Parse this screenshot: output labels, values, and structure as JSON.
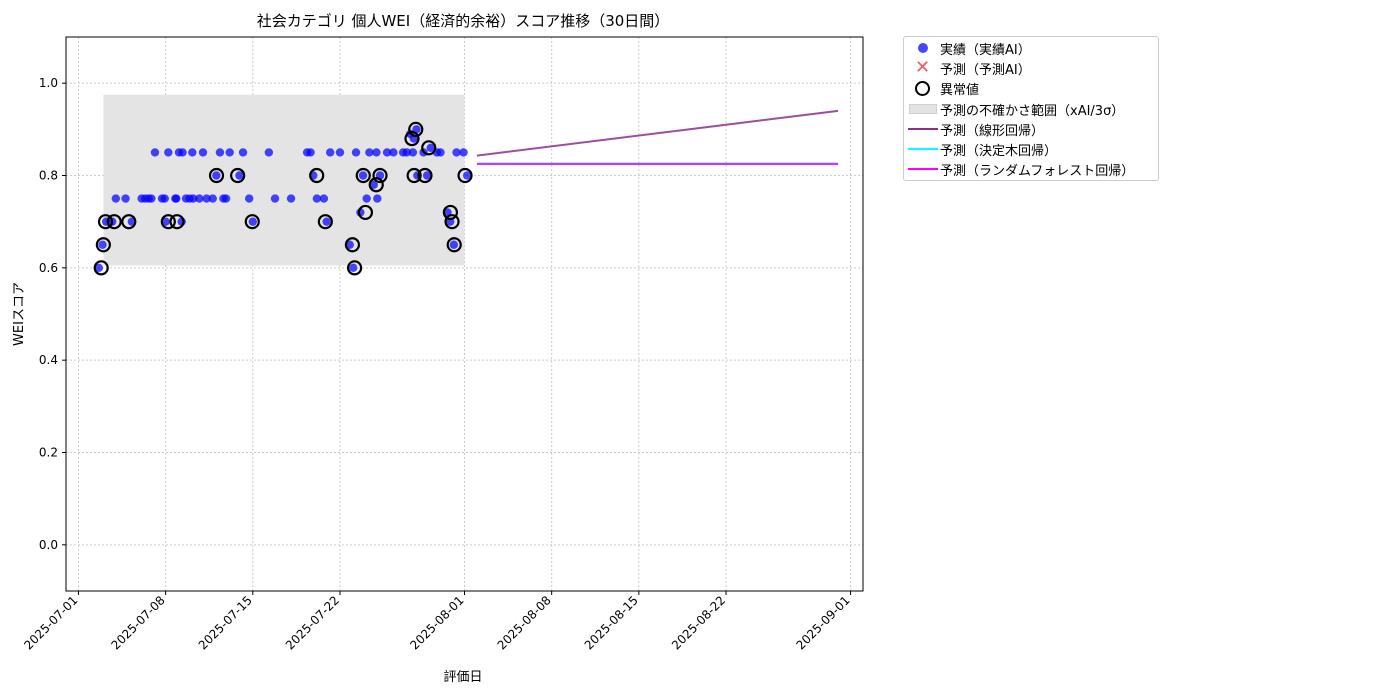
{
  "chart_data": {
    "type": "scatter",
    "title": "社会カテゴリ 個人WEI（経済的余裕）スコア推移（30日間）",
    "xlabel": "評価日",
    "ylabel": "WEIスコア",
    "xlim": [
      "2025-06-30",
      "2025-09-02"
    ],
    "ylim": [
      -0.1,
      1.1
    ],
    "x_ticks": [
      "2025-07-01",
      "2025-07-08",
      "2025-07-15",
      "2025-07-22",
      "2025-08-01",
      "2025-08-08",
      "2025-08-15",
      "2025-08-22",
      "2025-09-01"
    ],
    "y_ticks": [
      0.0,
      0.2,
      0.4,
      0.6,
      0.8,
      1.0
    ],
    "y_tick_labels": [
      "0.0",
      "0.2",
      "0.4",
      "0.6",
      "0.8",
      "1.0"
    ],
    "grid": true,
    "legend_position": "outside right top",
    "colors": {
      "actual": "#0000ff",
      "predicted_marker": "#ff3333",
      "anomaly": "#000000",
      "band": "#e3e3e3",
      "linear": "#8b2f8b",
      "tree": "#00ffff",
      "forest": "#ff00ff"
    },
    "uncertainty_band": {
      "x_start": "2025-07-03",
      "x_end": "2025-08-01",
      "y_low": 0.605,
      "y_high": 0.975
    },
    "series": [
      {
        "name": "実績（実績AI）",
        "kind": "scatter",
        "points": [
          [
            "2025-07-03",
            0.6
          ],
          [
            "2025-07-03",
            0.65
          ],
          [
            "2025-07-03",
            0.7
          ],
          [
            "2025-07-04",
            0.7
          ],
          [
            "2025-07-04",
            0.75
          ],
          [
            "2025-07-05",
            0.7
          ],
          [
            "2025-07-05",
            0.75
          ],
          [
            "2025-07-06",
            0.75
          ],
          [
            "2025-07-06",
            0.75
          ],
          [
            "2025-07-07",
            0.75
          ],
          [
            "2025-07-07",
            0.85
          ],
          [
            "2025-07-07",
            0.75
          ],
          [
            "2025-07-08",
            0.75
          ],
          [
            "2025-07-08",
            0.85
          ],
          [
            "2025-07-08",
            0.75
          ],
          [
            "2025-07-08",
            0.7
          ],
          [
            "2025-07-09",
            0.7
          ],
          [
            "2025-07-09",
            0.75
          ],
          [
            "2025-07-09",
            0.85
          ],
          [
            "2025-07-09",
            0.85
          ],
          [
            "2025-07-09",
            0.75
          ],
          [
            "2025-07-10",
            0.85
          ],
          [
            "2025-07-10",
            0.75
          ],
          [
            "2025-07-10",
            0.75
          ],
          [
            "2025-07-10",
            0.75
          ],
          [
            "2025-07-11",
            0.75
          ],
          [
            "2025-07-11",
            0.85
          ],
          [
            "2025-07-11",
            0.75
          ],
          [
            "2025-07-12",
            0.75
          ],
          [
            "2025-07-12",
            0.8
          ],
          [
            "2025-07-12",
            0.85
          ],
          [
            "2025-07-13",
            0.75
          ],
          [
            "2025-07-13",
            0.85
          ],
          [
            "2025-07-13",
            0.75
          ],
          [
            "2025-07-14",
            0.8
          ],
          [
            "2025-07-14",
            0.85
          ],
          [
            "2025-07-15",
            0.75
          ],
          [
            "2025-07-15",
            0.7
          ],
          [
            "2025-07-16",
            0.85
          ],
          [
            "2025-07-17",
            0.75
          ],
          [
            "2025-07-18",
            0.75
          ],
          [
            "2025-07-19",
            0.85
          ],
          [
            "2025-07-20",
            0.8
          ],
          [
            "2025-07-20",
            0.75
          ],
          [
            "2025-07-20",
            0.85
          ],
          [
            "2025-07-21",
            0.7
          ],
          [
            "2025-07-21",
            0.85
          ],
          [
            "2025-07-21",
            0.75
          ],
          [
            "2025-07-22",
            0.85
          ],
          [
            "2025-07-23",
            0.85
          ],
          [
            "2025-07-23",
            0.65
          ],
          [
            "2025-07-23",
            0.6
          ],
          [
            "2025-07-24",
            0.85
          ],
          [
            "2025-07-24",
            0.8
          ],
          [
            "2025-07-24",
            0.75
          ],
          [
            "2025-07-24",
            0.72
          ],
          [
            "2025-07-25",
            0.85
          ],
          [
            "2025-07-25",
            0.8
          ],
          [
            "2025-07-25",
            0.78
          ],
          [
            "2025-07-25",
            0.75
          ],
          [
            "2025-07-26",
            0.85
          ],
          [
            "2025-07-26",
            0.85
          ],
          [
            "2025-07-27",
            0.85
          ],
          [
            "2025-07-27",
            0.85
          ],
          [
            "2025-07-28",
            0.85
          ],
          [
            "2025-07-28",
            0.9
          ],
          [
            "2025-07-28",
            0.89
          ],
          [
            "2025-07-28",
            0.88
          ],
          [
            "2025-07-28",
            0.8
          ],
          [
            "2025-07-29",
            0.85
          ],
          [
            "2025-07-29",
            0.8
          ],
          [
            "2025-07-29",
            0.86
          ],
          [
            "2025-07-30",
            0.85
          ],
          [
            "2025-07-30",
            0.85
          ],
          [
            "2025-07-31",
            0.85
          ],
          [
            "2025-07-31",
            0.7
          ],
          [
            "2025-07-31",
            0.65
          ],
          [
            "2025-07-31",
            0.72
          ],
          [
            "2025-08-01",
            0.85
          ],
          [
            "2025-08-01",
            0.8
          ]
        ]
      },
      {
        "name": "予測（予測AI）",
        "kind": "scatter_x",
        "points": []
      },
      {
        "name": "異常値",
        "kind": "ring",
        "points": [
          [
            "2025-07-03",
            0.6
          ],
          [
            "2025-07-03",
            0.65
          ],
          [
            "2025-07-03",
            0.7
          ],
          [
            "2025-07-04",
            0.7
          ],
          [
            "2025-07-05",
            0.7
          ],
          [
            "2025-07-08",
            0.7
          ],
          [
            "2025-07-09",
            0.7
          ],
          [
            "2025-07-12",
            0.8
          ],
          [
            "2025-07-14",
            0.8
          ],
          [
            "2025-07-15",
            0.7
          ],
          [
            "2025-07-20",
            0.8
          ],
          [
            "2025-07-21",
            0.7
          ],
          [
            "2025-07-23",
            0.65
          ],
          [
            "2025-07-23",
            0.6
          ],
          [
            "2025-07-24",
            0.8
          ],
          [
            "2025-07-24",
            0.72
          ],
          [
            "2025-07-25",
            0.8
          ],
          [
            "2025-07-25",
            0.78
          ],
          [
            "2025-07-28",
            0.9
          ],
          [
            "2025-07-28",
            0.88
          ],
          [
            "2025-07-28",
            0.8
          ],
          [
            "2025-07-29",
            0.86
          ],
          [
            "2025-07-29",
            0.8
          ],
          [
            "2025-07-31",
            0.7
          ],
          [
            "2025-07-31",
            0.65
          ],
          [
            "2025-07-31",
            0.72
          ],
          [
            "2025-08-01",
            0.8
          ]
        ]
      },
      {
        "name": "予測の不確かさ範囲（xAI/3σ）",
        "kind": "band",
        "points": []
      },
      {
        "name": "予測（線形回帰）",
        "kind": "line",
        "points": [
          [
            "2025-08-02",
            0.843
          ],
          [
            "2025-08-31",
            0.94
          ]
        ]
      },
      {
        "name": "予測（決定木回帰）",
        "kind": "line",
        "points": [
          [
            "2025-08-02",
            0.826
          ],
          [
            "2025-08-31",
            0.826
          ]
        ]
      },
      {
        "name": "予測（ランダムフォレスト回帰）",
        "kind": "line",
        "points": [
          [
            "2025-08-02",
            0.825
          ],
          [
            "2025-08-31",
            0.825
          ]
        ]
      }
    ]
  },
  "legend": {
    "items": [
      {
        "label": "実績（実績AI）"
      },
      {
        "label": "予測（予測AI）"
      },
      {
        "label": "異常値"
      },
      {
        "label": "予測の不確かさ範囲（xAI/3σ）"
      },
      {
        "label": "予測（線形回帰）"
      },
      {
        "label": "予測（決定木回帰）"
      },
      {
        "label": "予測（ランダムフォレスト回帰）"
      }
    ]
  }
}
